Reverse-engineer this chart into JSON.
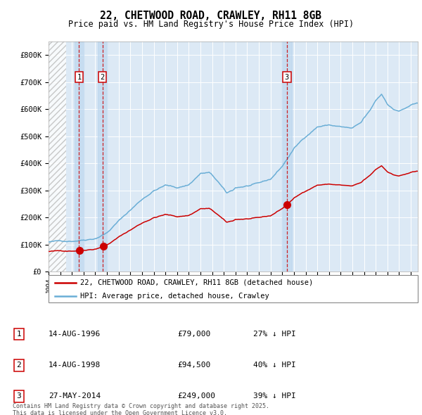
{
  "title_line1": "22, CHETWOOD ROAD, CRAWLEY, RH11 8GB",
  "title_line2": "Price paid vs. HM Land Registry's House Price Index (HPI)",
  "yticks": [
    0,
    100000,
    200000,
    300000,
    400000,
    500000,
    600000,
    700000,
    800000
  ],
  "ytick_labels": [
    "£0",
    "£100K",
    "£200K",
    "£300K",
    "£400K",
    "£500K",
    "£600K",
    "£700K",
    "£800K"
  ],
  "xmin": 1994.0,
  "xmax": 2025.6,
  "ymin": 0,
  "ymax": 850000,
  "bg_color": "#dce9f5",
  "grid_color": "#ffffff",
  "hpi_color": "#6aaed6",
  "price_color": "#cc0000",
  "vline_color": "#cc0000",
  "vspan_color": "#b8d4ee",
  "vspan_alpha": 0.6,
  "hatch_end": 1995.5,
  "legend_label_price": "22, CHETWOOD ROAD, CRAWLEY, RH11 8GB (detached house)",
  "legend_label_hpi": "HPI: Average price, detached house, Crawley",
  "sales": [
    {
      "num": 1,
      "date": 1996.617,
      "price": 79000,
      "label": "14-AUG-1996",
      "price_str": "£79,000",
      "hpi_pct": "27% ↓ HPI"
    },
    {
      "num": 2,
      "date": 1998.617,
      "price": 94500,
      "label": "14-AUG-1998",
      "price_str": "£94,500",
      "hpi_pct": "40% ↓ HPI"
    },
    {
      "num": 3,
      "date": 2014.4,
      "price": 249000,
      "label": "27-MAY-2014",
      "price_str": "£249,000",
      "hpi_pct": "39% ↓ HPI"
    }
  ],
  "footnote_line1": "Contains HM Land Registry data © Crown copyright and database right 2025.",
  "footnote_line2": "This data is licensed under the Open Government Licence v3.0."
}
